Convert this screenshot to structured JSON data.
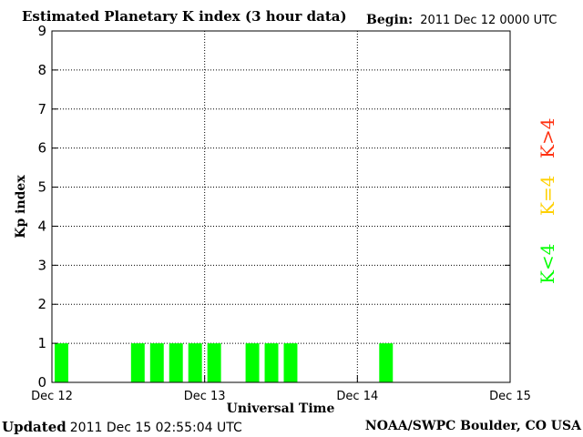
{
  "header": {
    "title": "Estimated Planetary K index (3 hour data)",
    "begin_label": "Begin:",
    "begin_value": "2011 Dec 12 0000 UTC"
  },
  "footer": {
    "updated_label": "Updated",
    "updated_value": "2011 Dec 15 02:55:04 UTC",
    "source": "NOAA/SWPC Boulder, CO USA"
  },
  "legend": {
    "high": "K>4",
    "mid": "K=4",
    "low": "K<4",
    "colors": {
      "high": "#ff3010",
      "mid": "#ffd000",
      "low": "#00ff00"
    }
  },
  "chart_data": {
    "type": "bar",
    "title": "Estimated Planetary K index (3 hour data)",
    "xlabel": "Universal Time",
    "ylabel": "Kp index",
    "ylim": [
      0,
      9
    ],
    "xlim_hours": [
      0,
      72
    ],
    "interval_hours": 3,
    "x_ticks": [
      "Dec 12",
      "Dec 13",
      "Dec 14",
      "Dec 15"
    ],
    "y_ticks": [
      "0",
      "1",
      "2",
      "3",
      "4",
      "5",
      "6",
      "7",
      "8",
      "9"
    ],
    "grid": true,
    "values": [
      1,
      0,
      0,
      0,
      1,
      1,
      1,
      1,
      1,
      0,
      1,
      1,
      1,
      0,
      0,
      0,
      0,
      1
    ],
    "bar_color": "#00ff00"
  }
}
